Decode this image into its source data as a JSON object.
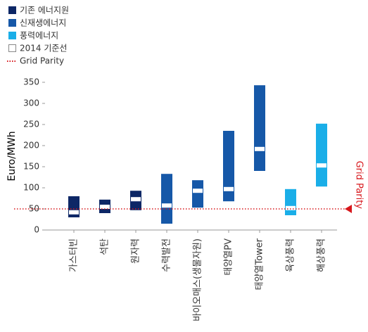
{
  "chart_data": {
    "type": "floating_bar",
    "ylabel": "Euro/MWh",
    "categories": [
      "가스터빈",
      "석탄",
      "원자력",
      "수력발전",
      "바이오매스(생물자원)",
      "태양열PV",
      "태양열Tower",
      "육상풍력",
      "해상풍력"
    ],
    "series": [
      {
        "name": "기존 에너지원",
        "color": "#0d2766",
        "low": [
          30,
          40,
          47,
          null,
          null,
          null,
          null,
          null,
          null
        ],
        "high": [
          80,
          72,
          93,
          null,
          null,
          null,
          null,
          null,
          null
        ]
      },
      {
        "name": "신재생에너지",
        "color": "#1658a8",
        "low": [
          null,
          null,
          null,
          15,
          53,
          68,
          140,
          null,
          null
        ],
        "high": [
          null,
          null,
          null,
          133,
          118,
          235,
          343,
          null,
          null
        ]
      },
      {
        "name": "풍력에너지",
        "color": "#1aaee8",
        "low": [
          null,
          null,
          null,
          null,
          null,
          null,
          null,
          35,
          103
        ],
        "high": [
          null,
          null,
          null,
          null,
          null,
          null,
          null,
          97,
          252
        ]
      }
    ],
    "baseline": {
      "name": "2014 기준선",
      "values": [
        42,
        55,
        73,
        58,
        93,
        97,
        192,
        52,
        153
      ]
    },
    "reference_line": {
      "name": "Grid Parity",
      "value": 50,
      "color": "#d7161b"
    },
    "ylim": [
      0,
      350
    ],
    "yticks": [
      0,
      50,
      100,
      150,
      200,
      250,
      300,
      350
    ]
  }
}
